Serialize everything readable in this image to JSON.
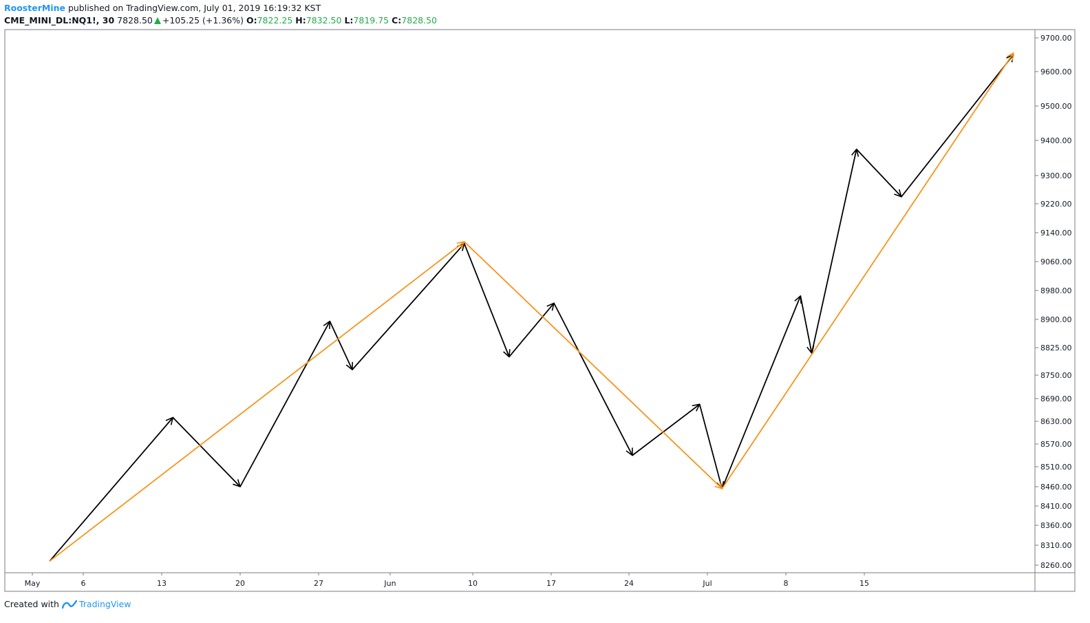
{
  "header": {
    "author": "RoosterMine",
    "published_text": " published on TradingView.com, July 01, 2019 16:19:32 KST",
    "symbol": "CME_MINI_DL:NQ1!, 30",
    "last": "7828.50",
    "change": "+105.25 (+1.36%)",
    "o_label": "O:",
    "o_value": "7822.25",
    "h_label": "H:",
    "h_value": "7832.50",
    "l_label": "L:",
    "l_value": "7819.75",
    "c_label": "C:",
    "c_value": "7828.50"
  },
  "footer": {
    "created_with": "Created with",
    "brand": "TradingView",
    "logo_icon": "tradingview-logo-icon"
  },
  "colors": {
    "black_path": "#000000",
    "orange_path": "#f7931a",
    "axis": "#787b86",
    "price_green": "#22ab4b"
  },
  "chart_data": {
    "type": "line",
    "y_axis_labels": [
      "9700.00",
      "9600.00",
      "9500.00",
      "9400.00",
      "9300.00",
      "9220.00",
      "9140.00",
      "9060.00",
      "8980.00",
      "8900.00",
      "8825.00",
      "8750.00",
      "8690.00",
      "8630.00",
      "8570.00",
      "8510.00",
      "8460.00",
      "8410.00",
      "8360.00",
      "8310.00",
      "8260.00"
    ],
    "x_axis_labels": [
      "May",
      "6",
      "13",
      "20",
      "27",
      "Jun",
      "10",
      "17",
      "24",
      "Jul",
      "8",
      "15"
    ],
    "series": [
      {
        "color": "#000000",
        "style": "arrows",
        "points": [
          {
            "date": "2019-05-03",
            "value": 8270
          },
          {
            "date": "2019-05-14",
            "value": 8640
          },
          {
            "date": "2019-05-20",
            "value": 8460
          },
          {
            "date": "2019-05-28",
            "value": 8895
          },
          {
            "date": "2019-05-30",
            "value": 8765
          },
          {
            "date": "2019-06-09",
            "value": 9110
          },
          {
            "date": "2019-06-13",
            "value": 8800
          },
          {
            "date": "2019-06-17",
            "value": 8945
          },
          {
            "date": "2019-06-24",
            "value": 8540
          },
          {
            "date": "2019-06-30",
            "value": 8675
          },
          {
            "date": "2019-07-02",
            "value": 8455
          },
          {
            "date": "2019-07-09",
            "value": 8965
          },
          {
            "date": "2019-07-10",
            "value": 8810
          },
          {
            "date": "2019-07-14",
            "value": 9375
          },
          {
            "date": "2019-07-18",
            "value": 9240
          },
          {
            "date": "2019-07-28",
            "value": 9650
          }
        ]
      },
      {
        "color": "#f7931a",
        "style": "arrows",
        "points": [
          {
            "date": "2019-05-03",
            "value": 8270
          },
          {
            "date": "2019-06-09",
            "value": 9115
          },
          {
            "date": "2019-07-02",
            "value": 8455
          },
          {
            "date": "2019-07-28",
            "value": 9655
          }
        ]
      }
    ],
    "grid": false
  }
}
